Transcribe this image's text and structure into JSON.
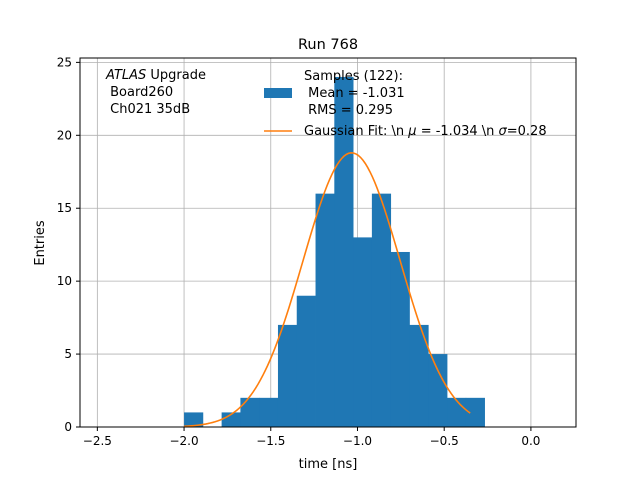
{
  "chart_data": {
    "type": "bar",
    "title": "Run 768",
    "xlabel": "time [ns]",
    "ylabel": "Entries",
    "xlim": [
      -2.6,
      0.26
    ],
    "ylim": [
      0,
      25.3
    ],
    "grid": true,
    "xticks": [
      -2.5,
      -2.0,
      -1.5,
      -1.0,
      -0.5,
      0.0
    ],
    "xtick_labels": [
      "−2.5",
      "−2.0",
      "−1.5",
      "−1.0",
      "−0.5",
      "0.0"
    ],
    "yticks": [
      0,
      5,
      10,
      15,
      20,
      25
    ],
    "ytick_labels": [
      "0",
      "5",
      "10",
      "15",
      "20",
      "25"
    ],
    "histogram": {
      "color": "#1f77b4",
      "bin_width": 0.1083,
      "bin_edges_start": -2.0,
      "counts": [
        1,
        0,
        1,
        2,
        2,
        7,
        9,
        16,
        24,
        13,
        16,
        12,
        7,
        5,
        2,
        2
      ]
    },
    "gaussian_fit": {
      "color": "#ff7f0e",
      "mu": -1.034,
      "sigma": 0.28,
      "amplitude": 18.8,
      "x_range": [
        -2.0,
        -0.35
      ]
    },
    "annotation": {
      "line1_italic": "ATLAS",
      "line1_rest": " Upgrade",
      "line2": " Board260",
      "line3": " Ch021 35dB"
    },
    "legend": {
      "placement": "top-right",
      "samples_line1": "Samples (122):",
      "samples_line2": " Mean = -1.031",
      "samples_line3": " RMS = 0.295",
      "fit_label_prefix": "Gaussian Fit: \\n ",
      "fit_mu_symbol": "μ",
      "fit_mu_value": " = -1.034 \\n ",
      "fit_sigma_symbol": "σ",
      "fit_sigma_value": "=0.28"
    }
  }
}
